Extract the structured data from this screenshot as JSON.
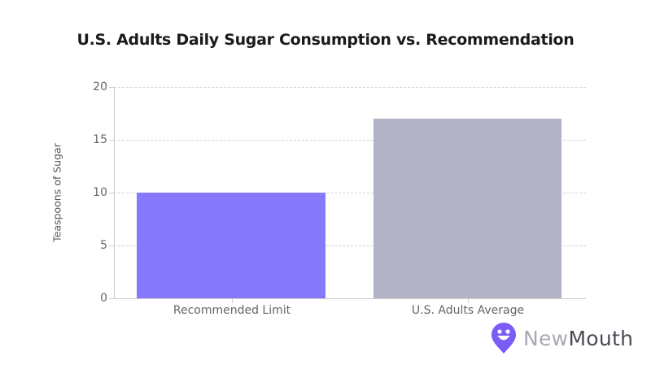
{
  "chart_data": {
    "type": "bar",
    "title": "U.S. Adults Daily Sugar Consumption vs. Recommendation",
    "xlabel": "",
    "ylabel": "Teaspoons of Sugar",
    "categories": [
      "Recommended Limit",
      "U.S. Adults Average"
    ],
    "values": [
      10,
      17
    ],
    "colors": [
      "#8878fb",
      "#b3b3c6"
    ],
    "ylim": [
      0,
      20
    ],
    "yticks": [
      0,
      5,
      10,
      15,
      20
    ],
    "grid": true,
    "legend": null
  },
  "labels": {
    "title": "U.S. Adults Daily Sugar Consumption vs. Recommendation",
    "ylabel": "Teaspoons of Sugar",
    "yticks": [
      "0",
      "5",
      "10",
      "15",
      "20"
    ],
    "categories": [
      "Recommended Limit",
      "U.S. Adults Average"
    ]
  },
  "branding": {
    "logo_new": "New",
    "logo_mouth": "Mouth",
    "accent": "#7b5cf5"
  }
}
